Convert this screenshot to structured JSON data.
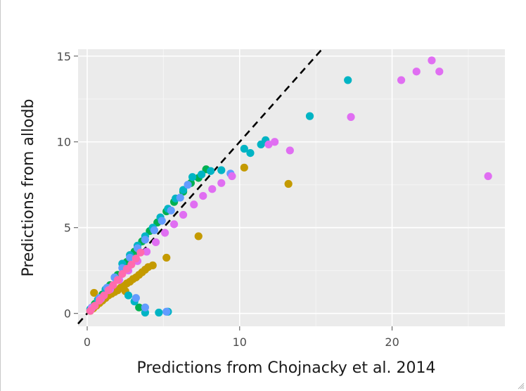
{
  "chart_data": {
    "type": "scatter",
    "xlabel": "Predictions from Chojnacky et al. 2014",
    "ylabel": "Predictions from allodb",
    "xlim": [
      -0.6,
      27.4
    ],
    "ylim": [
      -0.75,
      15.4
    ],
    "x_ticks": [
      0,
      10,
      20
    ],
    "y_ticks": [
      0,
      5,
      10,
      15
    ],
    "grid": true,
    "legend": "none",
    "reference_line": {
      "slope": 1,
      "intercept": 0,
      "style": "dashed",
      "color": "#000000"
    },
    "series": [
      {
        "color": "#C49A00",
        "values": [
          [
            0.2,
            0.15
          ],
          [
            0.4,
            0.3
          ],
          [
            0.6,
            0.45
          ],
          [
            0.8,
            0.6
          ],
          [
            1.0,
            0.75
          ],
          [
            1.2,
            0.9
          ],
          [
            1.4,
            1.05
          ],
          [
            1.6,
            1.15
          ],
          [
            1.8,
            1.25
          ],
          [
            2.0,
            1.35
          ],
          [
            2.2,
            1.5
          ],
          [
            2.4,
            1.6
          ],
          [
            2.6,
            1.75
          ],
          [
            2.8,
            1.85
          ],
          [
            3.0,
            2.0
          ],
          [
            3.2,
            2.1
          ],
          [
            3.4,
            2.25
          ],
          [
            3.6,
            2.4
          ],
          [
            3.8,
            2.55
          ],
          [
            4.0,
            2.7
          ],
          [
            4.3,
            2.8
          ],
          [
            0.45,
            1.2
          ],
          [
            2.5,
            1.3
          ],
          [
            5.2,
            3.25
          ],
          [
            7.3,
            4.5
          ],
          [
            10.3,
            8.5
          ],
          [
            13.2,
            7.55
          ]
        ]
      },
      {
        "color": "#00B050",
        "values": [
          [
            0.5,
            0.55
          ],
          [
            1.0,
            1.1
          ],
          [
            1.5,
            1.65
          ],
          [
            2.0,
            2.25
          ],
          [
            2.6,
            3.0
          ],
          [
            3.1,
            3.6
          ],
          [
            3.6,
            4.2
          ],
          [
            4.1,
            4.8
          ],
          [
            4.6,
            5.3
          ],
          [
            5.2,
            5.95
          ],
          [
            5.7,
            6.5
          ],
          [
            6.3,
            7.1
          ],
          [
            6.8,
            7.6
          ],
          [
            7.3,
            7.9
          ],
          [
            7.8,
            8.4
          ],
          [
            3.4,
            0.35
          ]
        ]
      },
      {
        "color": "#00B4C4",
        "values": [
          [
            0.2,
            0.25
          ],
          [
            0.7,
            0.8
          ],
          [
            1.2,
            1.4
          ],
          [
            1.8,
            2.1
          ],
          [
            2.3,
            2.9
          ],
          [
            2.8,
            3.4
          ],
          [
            3.3,
            3.95
          ],
          [
            3.8,
            4.5
          ],
          [
            4.3,
            5.0
          ],
          [
            4.8,
            5.6
          ],
          [
            5.3,
            6.1
          ],
          [
            5.8,
            6.7
          ],
          [
            6.3,
            7.2
          ],
          [
            6.9,
            7.95
          ],
          [
            7.5,
            8.1
          ],
          [
            8.1,
            8.3
          ],
          [
            8.8,
            8.35
          ],
          [
            10.3,
            9.6
          ],
          [
            10.7,
            9.35
          ],
          [
            11.4,
            9.85
          ],
          [
            11.7,
            10.1
          ],
          [
            14.6,
            11.5
          ],
          [
            17.1,
            13.6
          ],
          [
            2.7,
            1.05
          ],
          [
            3.1,
            0.7
          ],
          [
            3.8,
            0.05
          ],
          [
            4.7,
            0.05
          ],
          [
            5.3,
            0.1
          ]
        ]
      },
      {
        "color": "#629CFF",
        "values": [
          [
            0.3,
            0.35
          ],
          [
            0.8,
            0.9
          ],
          [
            1.3,
            1.5
          ],
          [
            1.8,
            2.1
          ],
          [
            2.3,
            2.65
          ],
          [
            2.8,
            3.25
          ],
          [
            3.3,
            3.8
          ],
          [
            3.8,
            4.3
          ],
          [
            4.4,
            4.85
          ],
          [
            4.9,
            5.4
          ],
          [
            5.5,
            6.0
          ],
          [
            6.1,
            6.75
          ],
          [
            6.6,
            7.5
          ],
          [
            3.2,
            0.9
          ],
          [
            3.8,
            0.35
          ],
          [
            5.2,
            0.1
          ],
          [
            9.4,
            8.15
          ]
        ]
      },
      {
        "color": "#E06EF2",
        "values": [
          [
            0.3,
            0.3
          ],
          [
            0.9,
            0.85
          ],
          [
            1.5,
            1.4
          ],
          [
            2.1,
            1.95
          ],
          [
            2.7,
            2.5
          ],
          [
            3.3,
            3.05
          ],
          [
            3.9,
            3.6
          ],
          [
            4.5,
            4.15
          ],
          [
            5.1,
            4.7
          ],
          [
            5.7,
            5.2
          ],
          [
            6.3,
            5.75
          ],
          [
            7.0,
            6.35
          ],
          [
            7.6,
            6.85
          ],
          [
            8.2,
            7.25
          ],
          [
            8.8,
            7.6
          ],
          [
            9.5,
            8.0
          ],
          [
            11.9,
            9.85
          ],
          [
            12.3,
            10.0
          ],
          [
            13.3,
            9.5
          ],
          [
            17.3,
            11.45
          ],
          [
            20.6,
            13.6
          ],
          [
            21.6,
            14.1
          ],
          [
            22.6,
            14.75
          ],
          [
            23.1,
            14.1
          ],
          [
            26.3,
            8.0
          ]
        ]
      },
      {
        "color": "#FF6BAE",
        "values": [
          [
            0.2,
            0.15
          ],
          [
            0.5,
            0.45
          ],
          [
            0.8,
            0.75
          ],
          [
            1.1,
            1.05
          ],
          [
            1.4,
            1.35
          ],
          [
            1.7,
            1.65
          ],
          [
            2.0,
            1.95
          ],
          [
            2.3,
            2.3
          ],
          [
            2.6,
            2.6
          ],
          [
            2.9,
            2.85
          ],
          [
            3.2,
            3.2
          ],
          [
            3.5,
            3.55
          ]
        ]
      }
    ]
  },
  "icons": {
    "resize": "resize-grip-icon"
  }
}
